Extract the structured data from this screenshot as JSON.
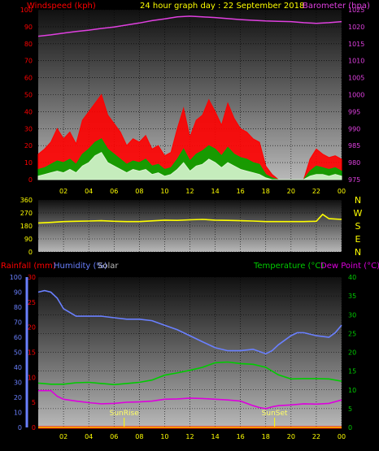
{
  "header": {
    "title": "24 hour graph day : 22 September 2018",
    "windspeed_label": "Windspeed (kph)",
    "barometer_label": "Barometer (hpa)"
  },
  "colors": {
    "wind_gust": "#ff0000",
    "wind_avg": "#00aa00",
    "wind_min": "#d8f5d0",
    "barometer": "#e040e0",
    "direction": "#ffff00",
    "humidity": "#6a80ff",
    "temperature": "#00cc00",
    "dewpoint": "#dd00dd",
    "rainfall": "#ff0000",
    "sun_marker": "#ffff00",
    "panel_top": "#101010",
    "panel_bottom": "#b8b8b8"
  },
  "chart_data": [
    {
      "type": "line",
      "name": "wind-barometer",
      "title": "24 hour graph day : 22 September 2018",
      "ylabel": "Windspeed (kph)",
      "ylabel_right": "Barometer (hpa)",
      "x_ticks": [
        "02",
        "04",
        "06",
        "08",
        "10",
        "12",
        "14",
        "16",
        "18",
        "20",
        "22",
        "00"
      ],
      "x_range": [
        0,
        24
      ],
      "ylim": [
        0,
        100
      ],
      "ylim_right": [
        975,
        1025
      ],
      "y_ticks": [
        0,
        10,
        20,
        30,
        40,
        50,
        60,
        70,
        80,
        90,
        100
      ],
      "y_ticks_right": [
        975,
        980,
        985,
        990,
        995,
        1000,
        1005,
        1010,
        1015,
        1020,
        1025
      ],
      "grid": true,
      "series": [
        {
          "name": "Barometer",
          "axis": "right",
          "x": [
            0,
            1,
            2,
            3,
            4,
            5,
            6,
            7,
            8,
            9,
            10,
            11,
            12,
            13,
            14,
            15,
            16,
            17,
            18,
            19,
            20,
            21,
            22,
            23,
            24
          ],
          "values": [
            1017.2,
            1017.6,
            1018.1,
            1018.6,
            1019.0,
            1019.5,
            1019.9,
            1020.5,
            1021.1,
            1021.8,
            1022.3,
            1022.9,
            1023.1,
            1022.9,
            1022.7,
            1022.4,
            1022.1,
            1021.9,
            1021.7,
            1021.6,
            1021.5,
            1021.2,
            1021.0,
            1021.2,
            1021.5
          ]
        },
        {
          "name": "Gust",
          "axis": "left",
          "x": [
            0,
            0.5,
            1,
            1.5,
            2,
            2.5,
            3,
            3.5,
            4,
            4.5,
            5,
            5.5,
            6,
            6.5,
            7,
            7.5,
            8,
            8.5,
            9,
            9.5,
            10,
            10.5,
            11,
            11.5,
            12,
            12.5,
            13,
            13.5,
            14,
            14.5,
            15,
            15.5,
            16,
            16.5,
            17,
            17.5,
            18,
            18.5,
            19,
            19.5,
            20,
            20.5,
            21,
            21.5,
            22,
            22.5,
            23,
            23.5,
            24
          ],
          "values": [
            15,
            18,
            22,
            30,
            24,
            28,
            21,
            35,
            40,
            45,
            50,
            38,
            33,
            28,
            20,
            24,
            22,
            26,
            18,
            20,
            14,
            16,
            30,
            42,
            25,
            35,
            38,
            47,
            40,
            32,
            45,
            36,
            30,
            28,
            24,
            22,
            8,
            3,
            0,
            0,
            0,
            0,
            0,
            12,
            18,
            15,
            13,
            14,
            12
          ]
        },
        {
          "name": "Average",
          "axis": "left",
          "x": [
            0,
            0.5,
            1,
            1.5,
            2,
            2.5,
            3,
            3.5,
            4,
            4.5,
            5,
            5.5,
            6,
            6.5,
            7,
            7.5,
            8,
            8.5,
            9,
            9.5,
            10,
            10.5,
            11,
            11.5,
            12,
            12.5,
            13,
            13.5,
            14,
            14.5,
            15,
            15.5,
            16,
            16.5,
            17,
            17.5,
            18,
            18.5,
            19,
            19.5,
            20,
            20.5,
            21,
            21.5,
            22,
            22.5,
            23,
            23.5,
            24
          ],
          "values": [
            6,
            7,
            9,
            11,
            10,
            12,
            9,
            15,
            18,
            22,
            24,
            18,
            15,
            12,
            9,
            11,
            10,
            12,
            8,
            9,
            6,
            7,
            12,
            18,
            11,
            15,
            17,
            20,
            18,
            14,
            19,
            15,
            13,
            12,
            10,
            9,
            3,
            1,
            0,
            0,
            0,
            0,
            0,
            5,
            8,
            7,
            6,
            7,
            5
          ]
        },
        {
          "name": "Minimum",
          "axis": "left",
          "x": [
            0,
            0.5,
            1,
            1.5,
            2,
            2.5,
            3,
            3.5,
            4,
            4.5,
            5,
            5.5,
            6,
            6.5,
            7,
            7.5,
            8,
            8.5,
            9,
            9.5,
            10,
            10.5,
            11,
            11.5,
            12,
            12.5,
            13,
            13.5,
            14,
            14.5,
            15,
            15.5,
            16,
            16.5,
            17,
            17.5,
            18,
            18.5,
            19,
            19.5,
            20,
            20.5,
            21,
            21.5,
            22,
            22.5,
            23,
            23.5,
            24
          ],
          "values": [
            2,
            3,
            4,
            5,
            4,
            6,
            4,
            8,
            10,
            14,
            16,
            10,
            8,
            6,
            4,
            6,
            5,
            6,
            3,
            4,
            2,
            3,
            6,
            10,
            5,
            8,
            9,
            12,
            10,
            7,
            10,
            8,
            6,
            5,
            4,
            3,
            1,
            0,
            0,
            0,
            0,
            0,
            0,
            2,
            3,
            3,
            2,
            3,
            2
          ]
        }
      ]
    },
    {
      "type": "scatter",
      "name": "wind-direction",
      "ylabel": "Direction",
      "x_range": [
        0,
        24
      ],
      "ylim": [
        0,
        360
      ],
      "y_ticks": [
        0,
        90,
        180,
        270,
        360
      ],
      "compass_labels": [
        "N",
        "W",
        "S",
        "E",
        "N"
      ],
      "grid": true,
      "series": [
        {
          "name": "Direction",
          "x": [
            0,
            1,
            2,
            3,
            4,
            5,
            6,
            7,
            8,
            9,
            10,
            11,
            12,
            13,
            14,
            15,
            16,
            17,
            18,
            19,
            20,
            21,
            22,
            22.5,
            23,
            24
          ],
          "values": [
            200,
            204,
            210,
            212,
            214,
            216,
            212,
            210,
            210,
            215,
            220,
            218,
            222,
            225,
            220,
            218,
            216,
            214,
            210,
            210,
            210,
            210,
            212,
            260,
            230,
            225
          ]
        }
      ]
    },
    {
      "type": "line",
      "name": "temperature-humidity",
      "legend": [
        "Rainfall (mm)",
        "Humidity (%)",
        "Solar",
        "Temperature (°C)",
        "Dew Point (°C)"
      ],
      "x_ticks": [
        "02",
        "04",
        "06",
        "08",
        "10",
        "12",
        "14",
        "16",
        "18",
        "20",
        "22",
        "00"
      ],
      "x_range": [
        0,
        24
      ],
      "y_ticks_humidity": [
        0,
        10,
        20,
        30,
        40,
        50,
        60,
        70,
        80,
        90,
        100
      ],
      "y_ticks_rain": [
        0,
        5,
        10,
        15,
        20,
        25,
        30
      ],
      "y_ticks_temp": [
        0,
        5,
        10,
        15,
        20,
        25,
        30,
        35,
        40
      ],
      "ylim_humidity": [
        0,
        100
      ],
      "ylim_rain": [
        0,
        30
      ],
      "ylim_temp": [
        0,
        40
      ],
      "annotations": [
        {
          "text": "SunRise",
          "x": 6.8
        },
        {
          "text": "SunSet",
          "x": 18.7
        }
      ],
      "grid": true,
      "series": [
        {
          "name": "Humidity (%)",
          "axis": "humidity",
          "x": [
            0,
            0.5,
            1,
            1.5,
            2,
            3,
            4,
            5,
            6,
            7,
            8,
            9,
            10,
            11,
            12,
            13,
            14,
            15,
            16,
            17,
            18,
            18.5,
            19,
            20,
            20.5,
            21,
            22,
            23,
            23.5,
            24
          ],
          "values": [
            90,
            91,
            90,
            86,
            79,
            74,
            74,
            74,
            73,
            72,
            72,
            71,
            68,
            65,
            61,
            57,
            53,
            51,
            51,
            52,
            49,
            51,
            55,
            61,
            63,
            63,
            61,
            60,
            63,
            68
          ]
        },
        {
          "name": "Temperature (°C)",
          "axis": "temp",
          "x": [
            0,
            1,
            2,
            3,
            4,
            5,
            6,
            7,
            8,
            9,
            10,
            11,
            12,
            13,
            14,
            15,
            16,
            17,
            18,
            19,
            20,
            21,
            22,
            23,
            24
          ],
          "values": [
            11.8,
            11.5,
            11.5,
            11.9,
            12.0,
            11.7,
            11.4,
            11.7,
            12.0,
            12.6,
            13.9,
            14.5,
            15.2,
            16.0,
            17.2,
            17.4,
            17.0,
            16.8,
            16.0,
            14.0,
            12.9,
            13.0,
            13.0,
            12.9,
            12.3
          ]
        },
        {
          "name": "Dew Point (°C)",
          "axis": "temp",
          "x": [
            0,
            0.5,
            1,
            1.5,
            2,
            3,
            4,
            5,
            6,
            7,
            8,
            9,
            10,
            11,
            12,
            13,
            14,
            15,
            16,
            17,
            17.5,
            18,
            18.5,
            19,
            20,
            21,
            22,
            23,
            24
          ],
          "values": [
            9.8,
            9.8,
            9.8,
            8.3,
            7.5,
            7.0,
            6.6,
            6.3,
            6.4,
            6.7,
            6.8,
            7.0,
            7.5,
            7.6,
            7.8,
            7.7,
            7.5,
            7.3,
            7.0,
            5.8,
            5.3,
            5.0,
            5.5,
            5.8,
            6.0,
            6.3,
            6.2,
            6.4,
            7.3
          ]
        },
        {
          "name": "Rainfall (mm)",
          "axis": "rain",
          "x": [
            0,
            24
          ],
          "values": [
            0,
            0
          ]
        }
      ]
    }
  ]
}
